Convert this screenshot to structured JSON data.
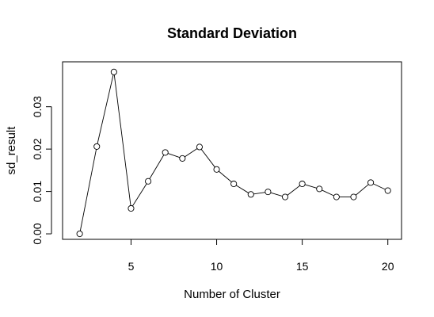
{
  "chart_data": {
    "type": "line",
    "title": "Standard Deviation",
    "xlabel": "Number of Cluster",
    "ylabel": "sd_result",
    "xlim": [
      1,
      20.8
    ],
    "ylim": [
      -0.0013,
      0.0406
    ],
    "xticks": [
      5,
      10,
      15,
      20
    ],
    "yticks": [
      0.0,
      0.01,
      0.02,
      0.03
    ],
    "ytick_labels": [
      "0.00",
      "0.01",
      "0.02",
      "0.03"
    ],
    "grid": false,
    "legend": "none",
    "series": [
      {
        "x": [
          2,
          3,
          4,
          5,
          6,
          7,
          8,
          9,
          10,
          11,
          12,
          13,
          14,
          15,
          16,
          17,
          18,
          19,
          20
        ],
        "y": [
          0.0,
          0.0206,
          0.0382,
          0.006,
          0.0124,
          0.0192,
          0.0178,
          0.0205,
          0.0152,
          0.0118,
          0.0093,
          0.0099,
          0.0087,
          0.0118,
          0.0106,
          0.0087,
          0.0087,
          0.0121,
          0.0102
        ],
        "marker": "open-circle",
        "line_color": "#000000"
      }
    ]
  }
}
